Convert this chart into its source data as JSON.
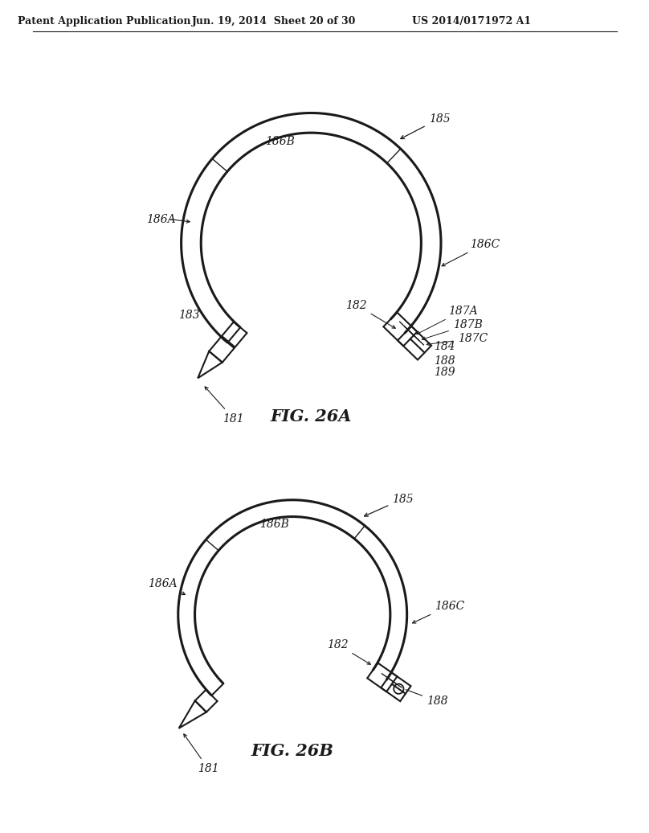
{
  "header_left": "Patent Application Publication",
  "header_mid": "Jun. 19, 2014  Sheet 20 of 30",
  "header_right": "US 2014/0171972 A1",
  "fig_a_label": "FIG. 26A",
  "fig_b_label": "FIG. 26B",
  "background": "#ffffff",
  "line_color": "#1a1a1a",
  "text_color": "#1a1a1a",
  "label_fontsize": 10,
  "header_fontsize": 9,
  "fig_label_fontsize": 15
}
